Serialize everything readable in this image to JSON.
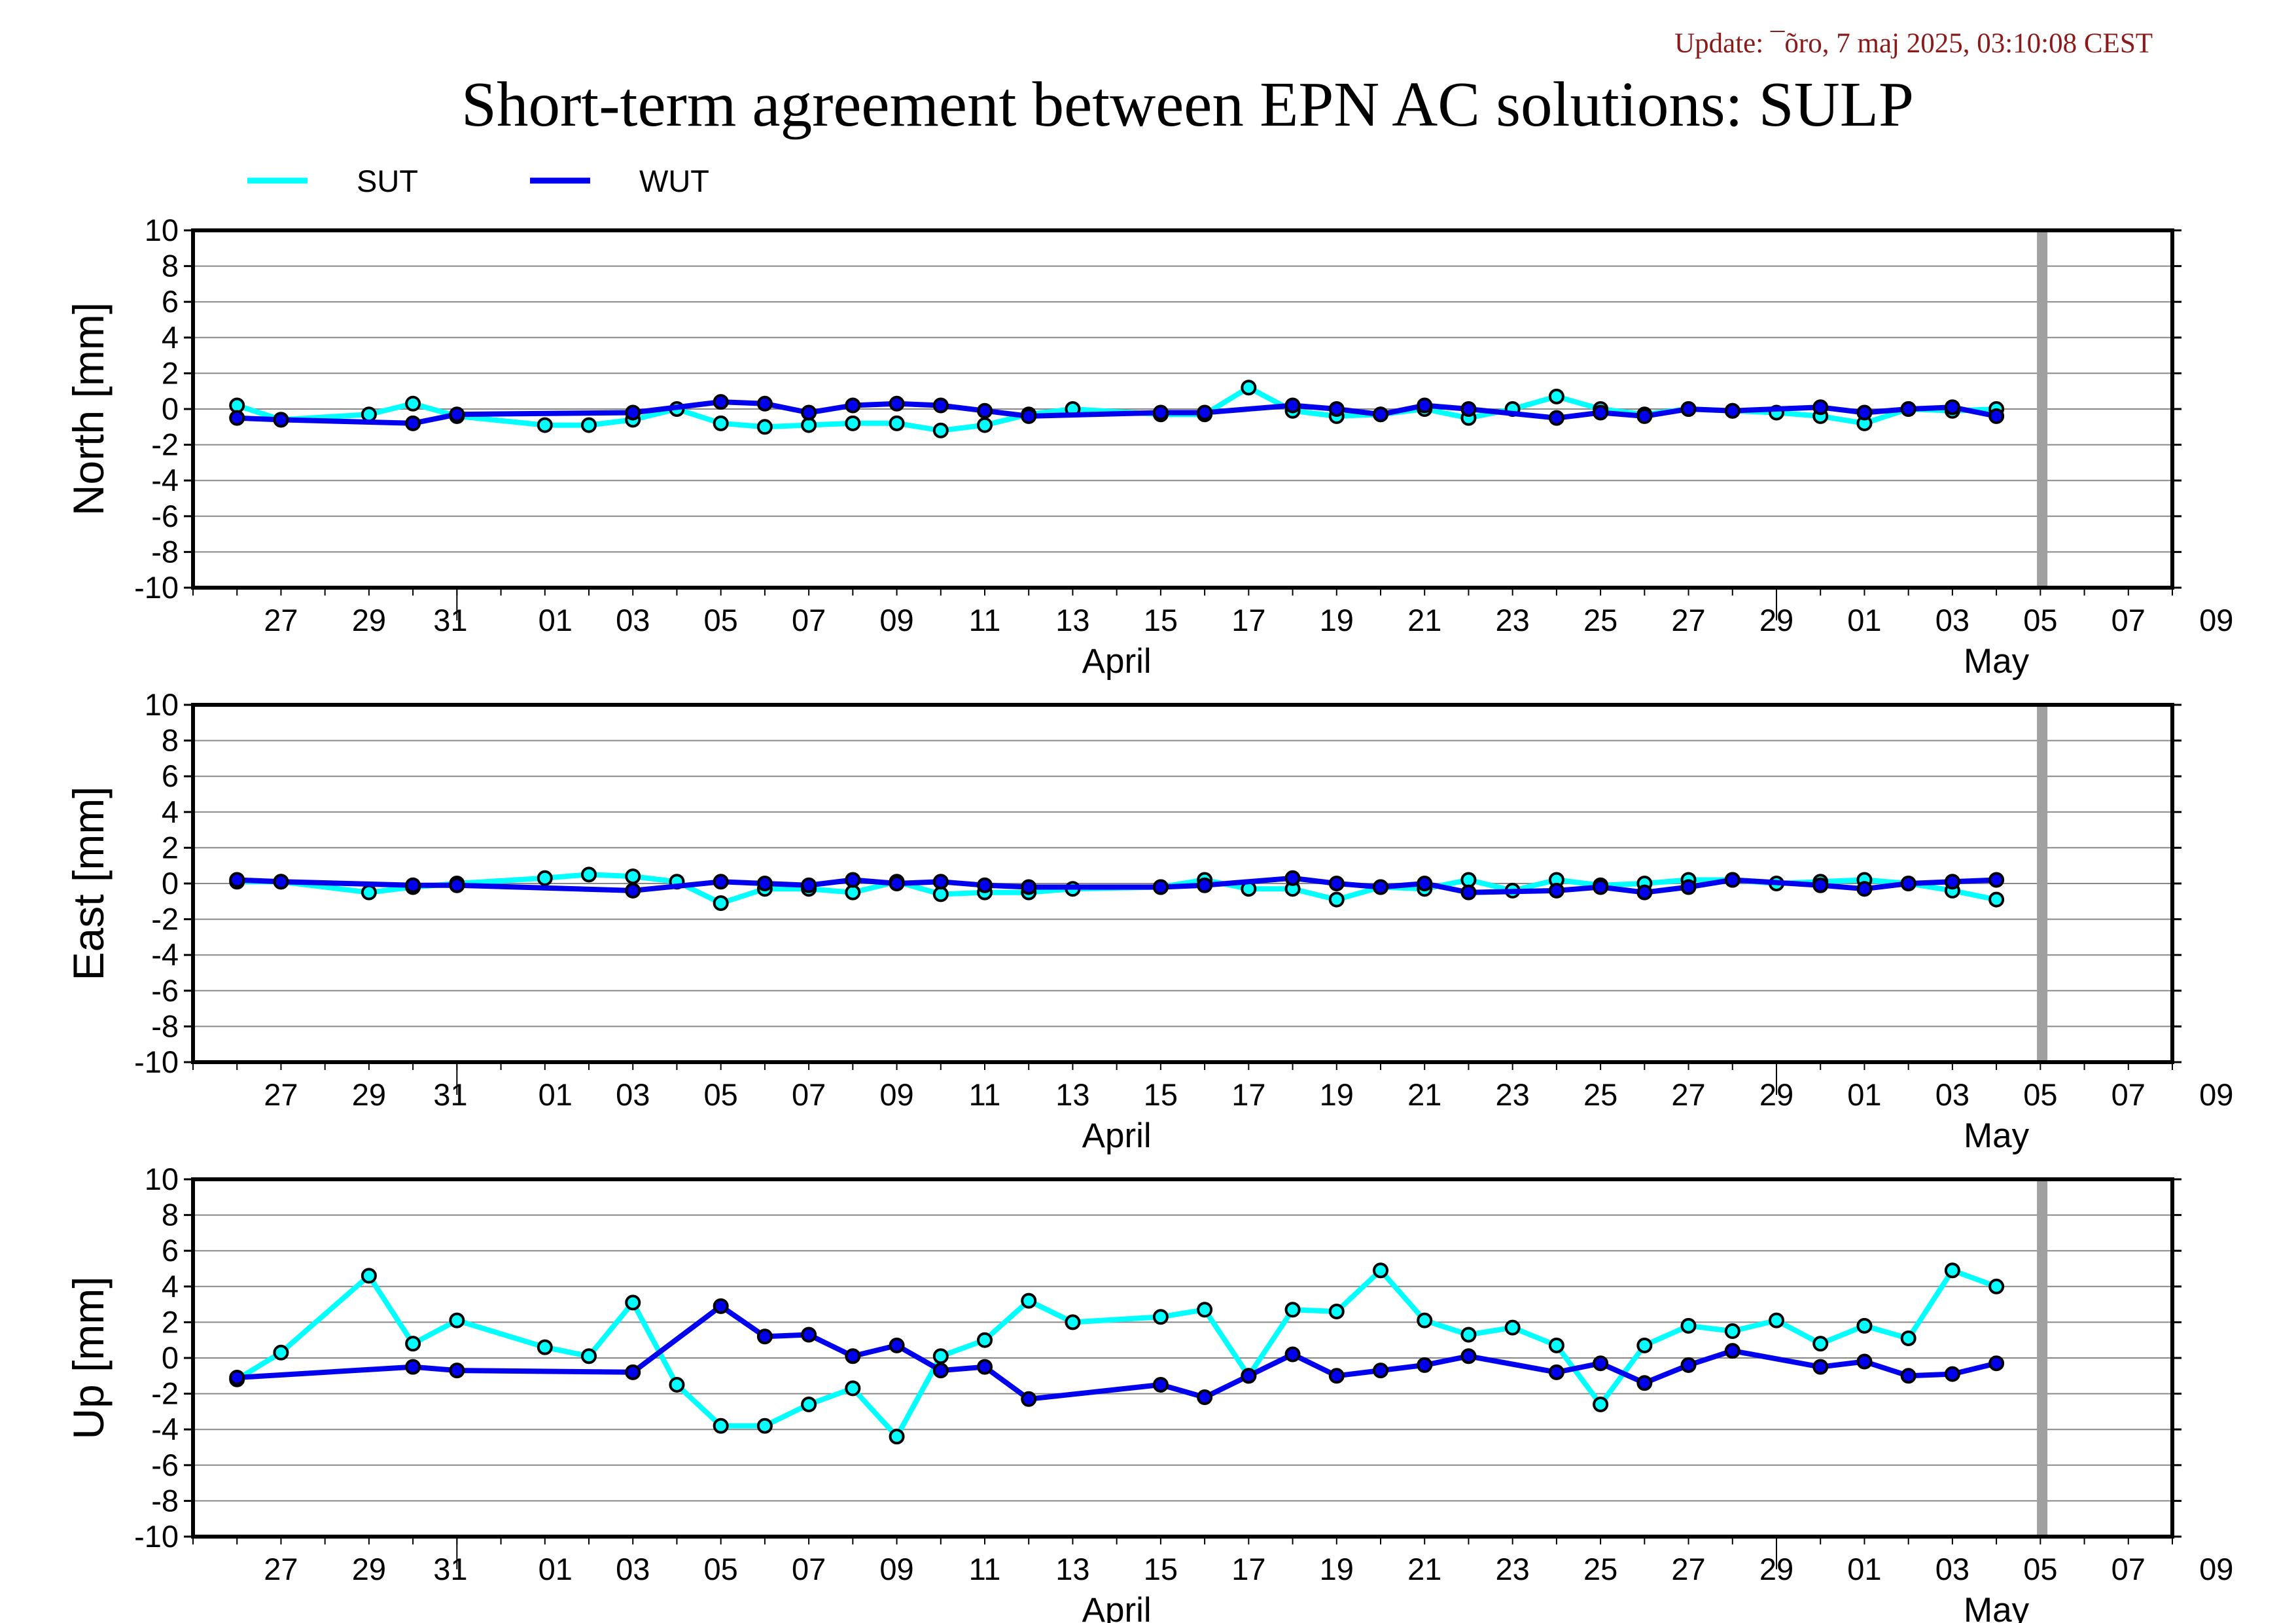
{
  "update_text": "Update: ¯õro, 7 maj 2025, 03:10:08 CEST",
  "title": "Short-term agreement between EPN AC solutions: SULP",
  "colors": {
    "SUT": "#00ffff",
    "WUT": "#0000ee",
    "grid": "#888888",
    "vline": "#a0a0a0"
  },
  "legend": [
    {
      "name": "SUT",
      "color": "#00ffff"
    },
    {
      "name": "WUT",
      "color": "#0000ee"
    }
  ],
  "chart_data": [
    {
      "type": "line",
      "ylabel": "North [mm]",
      "ylim": [
        -10,
        10
      ],
      "yticks": [
        10,
        8,
        6,
        4,
        2,
        0,
        -2,
        -4,
        -6,
        -8,
        -10
      ],
      "xlim": [
        "2025-03-25",
        "2025-05-09"
      ],
      "x_ticks": [
        "27",
        "29",
        "31",
        "01",
        "03",
        "05",
        "07",
        "09",
        "11",
        "13",
        "15",
        "17",
        "19",
        "21",
        "23",
        "25",
        "27",
        "29",
        "01",
        "03",
        "05",
        "07",
        "09"
      ],
      "months": [
        "April",
        "May"
      ],
      "grid": true,
      "series": [
        {
          "name": "SUT",
          "x": [
            "2025-03-26",
            "2025-03-27",
            "2025-03-29",
            "2025-03-30",
            "2025-03-31",
            "2025-04-02",
            "2025-04-03",
            "2025-04-04",
            "2025-04-05",
            "2025-04-06",
            "2025-04-07",
            "2025-04-08",
            "2025-04-09",
            "2025-04-10",
            "2025-04-11",
            "2025-04-12",
            "2025-04-13",
            "2025-04-14",
            "2025-04-16",
            "2025-04-17",
            "2025-04-18",
            "2025-04-19",
            "2025-04-20",
            "2025-04-21",
            "2025-04-22",
            "2025-04-23",
            "2025-04-24",
            "2025-04-25",
            "2025-04-26",
            "2025-04-27",
            "2025-04-28",
            "2025-04-29",
            "2025-04-30",
            "2025-05-01",
            "2025-05-02",
            "2025-05-03",
            "2025-05-04",
            "2025-05-05"
          ],
          "y": [
            0.2,
            -0.6,
            -0.3,
            0.3,
            -0.4,
            -0.9,
            -0.9,
            -0.6,
            0.0,
            -0.8,
            -1.0,
            -0.9,
            -0.8,
            -0.8,
            -1.2,
            -0.9,
            -0.3,
            0.0,
            -0.3,
            -0.3,
            1.2,
            -0.1,
            -0.4,
            -0.3,
            0.0,
            -0.5,
            0.0,
            0.7,
            0.0,
            -0.3,
            0.0,
            -0.1,
            -0.2,
            -0.4,
            -0.8,
            0.0,
            -0.1,
            0.0
          ]
        },
        {
          "name": "WUT",
          "x": [
            "2025-03-26",
            "2025-03-27",
            "2025-03-30",
            "2025-03-31",
            "2025-04-04",
            "2025-04-06",
            "2025-04-07",
            "2025-04-08",
            "2025-04-09",
            "2025-04-10",
            "2025-04-11",
            "2025-04-12",
            "2025-04-13",
            "2025-04-16",
            "2025-04-17",
            "2025-04-19",
            "2025-04-20",
            "2025-04-21",
            "2025-04-22",
            "2025-04-23",
            "2025-04-25",
            "2025-04-26",
            "2025-04-27",
            "2025-04-28",
            "2025-04-29",
            "2025-05-01",
            "2025-05-02",
            "2025-05-03",
            "2025-05-04",
            "2025-05-05"
          ],
          "y": [
            -0.5,
            -0.6,
            -0.8,
            -0.3,
            -0.2,
            0.4,
            0.3,
            -0.2,
            0.2,
            0.3,
            0.2,
            -0.1,
            -0.4,
            -0.2,
            -0.2,
            0.2,
            0.0,
            -0.3,
            0.2,
            0.0,
            -0.5,
            -0.2,
            -0.4,
            0.0,
            -0.1,
            0.1,
            -0.2,
            0.0,
            0.1,
            -0.4
          ]
        }
      ]
    },
    {
      "type": "line",
      "ylabel": "East [mm]",
      "ylim": [
        -10,
        10
      ],
      "yticks": [
        10,
        8,
        6,
        4,
        2,
        0,
        -2,
        -4,
        -6,
        -8,
        -10
      ],
      "xlim": [
        "2025-03-25",
        "2025-05-09"
      ],
      "x_ticks": [
        "27",
        "29",
        "31",
        "01",
        "03",
        "05",
        "07",
        "09",
        "11",
        "13",
        "15",
        "17",
        "19",
        "21",
        "23",
        "25",
        "27",
        "29",
        "01",
        "03",
        "05",
        "07",
        "09"
      ],
      "months": [
        "April",
        "May"
      ],
      "grid": true,
      "series": [
        {
          "name": "SUT",
          "x": [
            "2025-03-26",
            "2025-03-27",
            "2025-03-29",
            "2025-03-30",
            "2025-03-31",
            "2025-04-02",
            "2025-04-03",
            "2025-04-04",
            "2025-04-05",
            "2025-04-06",
            "2025-04-07",
            "2025-04-08",
            "2025-04-09",
            "2025-04-10",
            "2025-04-11",
            "2025-04-12",
            "2025-04-13",
            "2025-04-14",
            "2025-04-16",
            "2025-04-17",
            "2025-04-18",
            "2025-04-19",
            "2025-04-20",
            "2025-04-21",
            "2025-04-22",
            "2025-04-23",
            "2025-04-24",
            "2025-04-25",
            "2025-04-26",
            "2025-04-27",
            "2025-04-28",
            "2025-04-29",
            "2025-04-30",
            "2025-05-01",
            "2025-05-02",
            "2025-05-03",
            "2025-05-04",
            "2025-05-05"
          ],
          "y": [
            0.1,
            0.1,
            -0.5,
            -0.2,
            0.0,
            0.3,
            0.5,
            0.4,
            0.1,
            -1.1,
            -0.3,
            -0.3,
            -0.5,
            0.1,
            -0.6,
            -0.5,
            -0.5,
            -0.3,
            -0.2,
            0.2,
            -0.3,
            -0.3,
            -0.9,
            -0.2,
            -0.3,
            0.2,
            -0.4,
            0.2,
            -0.1,
            0.0,
            0.2,
            0.2,
            0.0,
            0.1,
            0.2,
            0.0,
            -0.4,
            -0.9
          ]
        },
        {
          "name": "WUT",
          "x": [
            "2025-03-26",
            "2025-03-27",
            "2025-03-30",
            "2025-03-31",
            "2025-04-04",
            "2025-04-06",
            "2025-04-07",
            "2025-04-08",
            "2025-04-09",
            "2025-04-10",
            "2025-04-11",
            "2025-04-12",
            "2025-04-13",
            "2025-04-16",
            "2025-04-17",
            "2025-04-19",
            "2025-04-20",
            "2025-04-21",
            "2025-04-22",
            "2025-04-23",
            "2025-04-25",
            "2025-04-26",
            "2025-04-27",
            "2025-04-28",
            "2025-04-29",
            "2025-05-01",
            "2025-05-02",
            "2025-05-03",
            "2025-05-04",
            "2025-05-05"
          ],
          "y": [
            0.2,
            0.1,
            -0.1,
            -0.1,
            -0.4,
            0.1,
            0.0,
            -0.1,
            0.2,
            0.0,
            0.1,
            -0.1,
            -0.2,
            -0.2,
            -0.1,
            0.3,
            0.0,
            -0.2,
            0.0,
            -0.5,
            -0.4,
            -0.2,
            -0.5,
            -0.2,
            0.2,
            -0.1,
            -0.3,
            0.0,
            0.1,
            0.2
          ]
        }
      ]
    },
    {
      "type": "line",
      "ylabel": "Up [mm]",
      "ylim": [
        -10,
        10
      ],
      "yticks": [
        10,
        8,
        6,
        4,
        2,
        0,
        -2,
        -4,
        -6,
        -8,
        -10
      ],
      "xlim": [
        "2025-03-25",
        "2025-05-09"
      ],
      "x_ticks": [
        "27",
        "29",
        "31",
        "01",
        "03",
        "05",
        "07",
        "09",
        "11",
        "13",
        "15",
        "17",
        "19",
        "21",
        "23",
        "25",
        "27",
        "29",
        "01",
        "03",
        "05",
        "07",
        "09"
      ],
      "months": [
        "April",
        "May"
      ],
      "grid": true,
      "series": [
        {
          "name": "SUT",
          "x": [
            "2025-03-26",
            "2025-03-27",
            "2025-03-29",
            "2025-03-30",
            "2025-03-31",
            "2025-04-02",
            "2025-04-03",
            "2025-04-04",
            "2025-04-05",
            "2025-04-06",
            "2025-04-07",
            "2025-04-08",
            "2025-04-09",
            "2025-04-10",
            "2025-04-11",
            "2025-04-12",
            "2025-04-13",
            "2025-04-14",
            "2025-04-16",
            "2025-04-17",
            "2025-04-18",
            "2025-04-19",
            "2025-04-20",
            "2025-04-21",
            "2025-04-22",
            "2025-04-23",
            "2025-04-24",
            "2025-04-25",
            "2025-04-26",
            "2025-04-27",
            "2025-04-28",
            "2025-04-29",
            "2025-04-30",
            "2025-05-01",
            "2025-05-02",
            "2025-05-03",
            "2025-05-04",
            "2025-05-05"
          ],
          "y": [
            -1.2,
            0.3,
            4.6,
            0.8,
            2.1,
            0.6,
            0.1,
            3.1,
            -1.5,
            -3.8,
            -3.8,
            -2.6,
            -1.7,
            -4.4,
            0.1,
            1.0,
            3.2,
            2.0,
            2.3,
            2.7,
            -1.0,
            2.7,
            2.6,
            4.9,
            2.1,
            1.3,
            1.7,
            0.7,
            -2.6,
            0.7,
            1.8,
            1.5,
            2.1,
            0.8,
            1.8,
            1.1,
            4.9,
            4.0
          ]
        },
        {
          "name": "WUT",
          "x": [
            "2025-03-26",
            "2025-03-30",
            "2025-03-31",
            "2025-04-04",
            "2025-04-06",
            "2025-04-07",
            "2025-04-08",
            "2025-04-09",
            "2025-04-10",
            "2025-04-11",
            "2025-04-12",
            "2025-04-13",
            "2025-04-16",
            "2025-04-17",
            "2025-04-18",
            "2025-04-19",
            "2025-04-20",
            "2025-04-21",
            "2025-04-22",
            "2025-04-23",
            "2025-04-25",
            "2025-04-26",
            "2025-04-27",
            "2025-04-28",
            "2025-04-29",
            "2025-05-01",
            "2025-05-02",
            "2025-05-03",
            "2025-05-04",
            "2025-05-05"
          ],
          "y": [
            -1.1,
            -0.5,
            -0.7,
            -0.8,
            2.9,
            1.2,
            1.3,
            0.1,
            0.7,
            -0.7,
            -0.5,
            -2.3,
            -1.5,
            -2.2,
            -1.0,
            0.2,
            -1.0,
            -0.7,
            -0.4,
            0.1,
            -0.8,
            -0.3,
            -1.4,
            -0.4,
            0.4,
            -0.5,
            -0.2,
            -1.0,
            -0.9,
            -0.3
          ]
        }
      ]
    }
  ]
}
